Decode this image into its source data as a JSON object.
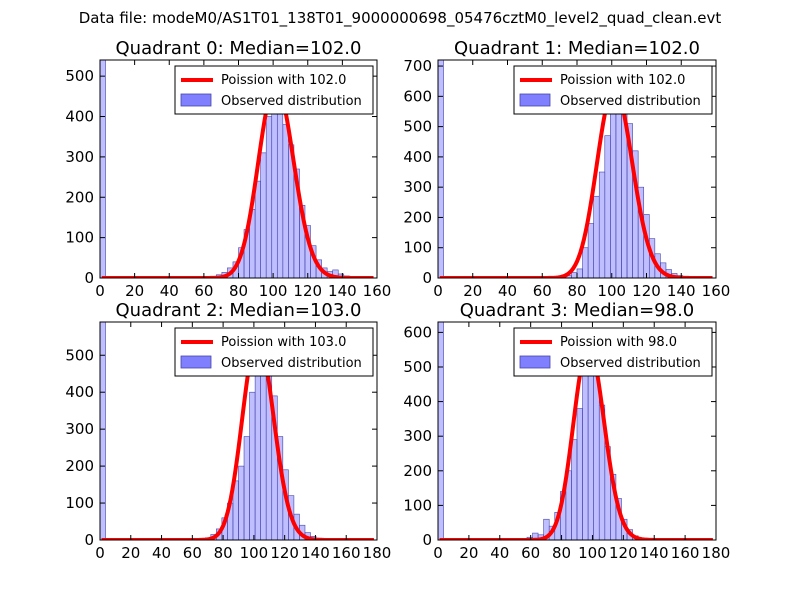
{
  "figure": {
    "suptitle": "Data file: modeM0/AS1T01_138T01_9000000698_05476cztM0_level2_quad_clean.evt"
  },
  "colors": {
    "hist_fill": "#8080ff",
    "hist_edge": "#4444aa",
    "curve": "#ff0000",
    "axis": "#000000"
  },
  "chart_data": [
    {
      "type": "bar",
      "title": "Quadrant 0: Median=102.0",
      "xlim": [
        0,
        160
      ],
      "ylim": [
        0,
        540
      ],
      "xticks": [
        0,
        20,
        40,
        60,
        80,
        100,
        120,
        140,
        160
      ],
      "yticks": [
        0,
        100,
        200,
        300,
        400,
        500
      ],
      "legend": {
        "location": "top-right",
        "curve_label": "Poission with 102.0",
        "hist_label": "Observed distribution"
      },
      "poisson_mean": 102.0,
      "bin_width": 3.2,
      "bins": [
        {
          "x": 0,
          "y": 540
        },
        {
          "x": 64,
          "y": 4
        },
        {
          "x": 67.2,
          "y": 8
        },
        {
          "x": 70.4,
          "y": 14
        },
        {
          "x": 73.6,
          "y": 25
        },
        {
          "x": 76.8,
          "y": 40
        },
        {
          "x": 80,
          "y": 75
        },
        {
          "x": 83.2,
          "y": 120
        },
        {
          "x": 86.4,
          "y": 170
        },
        {
          "x": 89.6,
          "y": 240
        },
        {
          "x": 92.8,
          "y": 310
        },
        {
          "x": 96,
          "y": 400
        },
        {
          "x": 99.2,
          "y": 460
        },
        {
          "x": 102.4,
          "y": 440
        },
        {
          "x": 105.6,
          "y": 380
        },
        {
          "x": 108.8,
          "y": 330
        },
        {
          "x": 112,
          "y": 270
        },
        {
          "x": 115.2,
          "y": 180
        },
        {
          "x": 118.4,
          "y": 130
        },
        {
          "x": 121.6,
          "y": 80
        },
        {
          "x": 124.8,
          "y": 45
        },
        {
          "x": 128,
          "y": 25
        },
        {
          "x": 131.2,
          "y": 16
        },
        {
          "x": 134.4,
          "y": 20
        },
        {
          "x": 137.6,
          "y": 10
        },
        {
          "x": 140.8,
          "y": 5
        },
        {
          "x": 144,
          "y": 3
        },
        {
          "x": 147.2,
          "y": 2
        }
      ]
    },
    {
      "type": "bar",
      "title": "Quadrant 1: Median=102.0",
      "xlim": [
        0,
        160
      ],
      "ylim": [
        0,
        720
      ],
      "xticks": [
        0,
        20,
        40,
        60,
        80,
        100,
        120,
        140,
        160
      ],
      "yticks": [
        0,
        100,
        200,
        300,
        400,
        500,
        600,
        700
      ],
      "legend": {
        "location": "top-right",
        "curve_label": "Poission with 102.0",
        "hist_label": "Observed distribution"
      },
      "poisson_mean": 102.0,
      "bin_width": 3.2,
      "bins": [
        {
          "x": 0,
          "y": 720
        },
        {
          "x": 70.4,
          "y": 3
        },
        {
          "x": 73.6,
          "y": 8
        },
        {
          "x": 76.8,
          "y": 18
        },
        {
          "x": 80,
          "y": 30
        },
        {
          "x": 83.2,
          "y": 100
        },
        {
          "x": 86.4,
          "y": 180
        },
        {
          "x": 89.6,
          "y": 270
        },
        {
          "x": 92.8,
          "y": 350
        },
        {
          "x": 96,
          "y": 470
        },
        {
          "x": 99.2,
          "y": 560
        },
        {
          "x": 102.4,
          "y": 640
        },
        {
          "x": 105.6,
          "y": 590
        },
        {
          "x": 108.8,
          "y": 510
        },
        {
          "x": 112,
          "y": 420
        },
        {
          "x": 115.2,
          "y": 300
        },
        {
          "x": 118.4,
          "y": 210
        },
        {
          "x": 121.6,
          "y": 130
        },
        {
          "x": 124.8,
          "y": 80
        },
        {
          "x": 128,
          "y": 50
        },
        {
          "x": 131.2,
          "y": 28
        },
        {
          "x": 134.4,
          "y": 15
        },
        {
          "x": 137.6,
          "y": 8
        },
        {
          "x": 140.8,
          "y": 4
        },
        {
          "x": 144,
          "y": 2
        },
        {
          "x": 147.2,
          "y": 2
        }
      ]
    },
    {
      "type": "bar",
      "title": "Quadrant 2: Median=103.0",
      "xlim": [
        0,
        180
      ],
      "ylim": [
        0,
        590
      ],
      "xticks": [
        0,
        20,
        40,
        60,
        80,
        100,
        120,
        140,
        160,
        180
      ],
      "yticks": [
        0,
        100,
        200,
        300,
        400,
        500
      ],
      "legend": {
        "location": "top-right",
        "curve_label": "Poission with 103.0",
        "hist_label": "Observed distribution"
      },
      "poisson_mean": 103.0,
      "bin_width": 3.6,
      "bins": [
        {
          "x": 0,
          "y": 590
        },
        {
          "x": 64.8,
          "y": 3
        },
        {
          "x": 68.4,
          "y": 6
        },
        {
          "x": 72,
          "y": 15
        },
        {
          "x": 75.6,
          "y": 30
        },
        {
          "x": 79.2,
          "y": 60
        },
        {
          "x": 82.8,
          "y": 100
        },
        {
          "x": 86.4,
          "y": 160
        },
        {
          "x": 90,
          "y": 200
        },
        {
          "x": 93.6,
          "y": 280
        },
        {
          "x": 97.2,
          "y": 400
        },
        {
          "x": 100.8,
          "y": 470
        },
        {
          "x": 104.4,
          "y": 540
        },
        {
          "x": 108,
          "y": 480
        },
        {
          "x": 111.6,
          "y": 390
        },
        {
          "x": 115.2,
          "y": 280
        },
        {
          "x": 118.8,
          "y": 190
        },
        {
          "x": 122.4,
          "y": 120
        },
        {
          "x": 126,
          "y": 70
        },
        {
          "x": 129.6,
          "y": 40
        },
        {
          "x": 133.2,
          "y": 20
        },
        {
          "x": 136.8,
          "y": 10
        },
        {
          "x": 140.4,
          "y": 5
        },
        {
          "x": 144,
          "y": 2
        }
      ]
    },
    {
      "type": "bar",
      "title": "Quadrant 3: Median=98.0",
      "xlim": [
        0,
        180
      ],
      "ylim": [
        0,
        630
      ],
      "xticks": [
        0,
        20,
        40,
        60,
        80,
        100,
        120,
        140,
        160,
        180
      ],
      "yticks": [
        0,
        100,
        200,
        300,
        400,
        500,
        600
      ],
      "legend": {
        "location": "top-right",
        "curve_label": "Poission with 98.0",
        "hist_label": "Observed distribution"
      },
      "poisson_mean": 98.0,
      "bin_width": 3.6,
      "bins": [
        {
          "x": 0,
          "y": 630
        },
        {
          "x": 57.6,
          "y": 8
        },
        {
          "x": 61.2,
          "y": 20
        },
        {
          "x": 64.8,
          "y": 15
        },
        {
          "x": 68.4,
          "y": 60
        },
        {
          "x": 72,
          "y": 40
        },
        {
          "x": 75.6,
          "y": 80
        },
        {
          "x": 79.2,
          "y": 140
        },
        {
          "x": 82.8,
          "y": 200
        },
        {
          "x": 86.4,
          "y": 290
        },
        {
          "x": 90,
          "y": 380
        },
        {
          "x": 93.6,
          "y": 520
        },
        {
          "x": 97.2,
          "y": 560
        },
        {
          "x": 100.8,
          "y": 480
        },
        {
          "x": 104.4,
          "y": 390
        },
        {
          "x": 108,
          "y": 270
        },
        {
          "x": 111.6,
          "y": 190
        },
        {
          "x": 115.2,
          "y": 120
        },
        {
          "x": 118.8,
          "y": 60
        },
        {
          "x": 122.4,
          "y": 30
        },
        {
          "x": 126,
          "y": 12
        },
        {
          "x": 129.6,
          "y": 5
        },
        {
          "x": 133.2,
          "y": 2
        }
      ]
    }
  ]
}
